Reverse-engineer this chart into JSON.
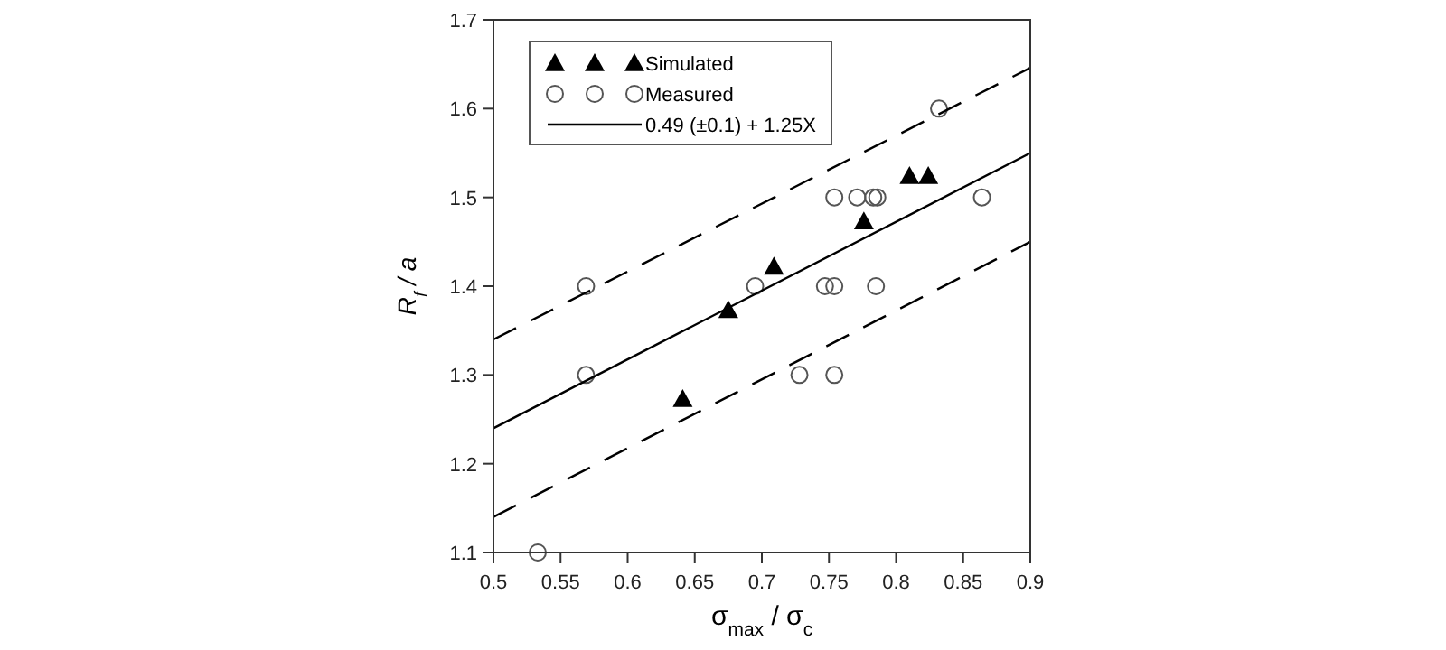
{
  "chart_data": {
    "type": "scatter",
    "xlabel": "σ$_{max}$ / σ$_{c}$",
    "ylabel": "R$_{f}$ / a",
    "xlim": [
      0.5,
      0.9
    ],
    "ylim": [
      1.1,
      1.7
    ],
    "xticks": [
      0.5,
      0.55,
      0.6,
      0.65,
      0.7,
      0.75,
      0.8,
      0.85,
      0.9
    ],
    "yticks": [
      1.1,
      1.2,
      1.3,
      1.4,
      1.5,
      1.6,
      1.7
    ],
    "grid": false,
    "legend": "top left",
    "series": [
      {
        "name": "Simulated",
        "marker": "triangle",
        "color": "#000000",
        "x": [
          0.641,
          0.675,
          0.709,
          0.776,
          0.81,
          0.824
        ],
        "values": [
          1.273,
          1.373,
          1.422,
          1.473,
          1.524,
          1.524
        ]
      },
      {
        "name": "Measured",
        "marker": "circle",
        "color": "#555555",
        "x": [
          0.533,
          0.569,
          0.569,
          0.695,
          0.728,
          0.754,
          0.747,
          0.754,
          0.785,
          0.754,
          0.771,
          0.783,
          0.786,
          0.832,
          0.864
        ],
        "values": [
          1.1,
          1.4,
          1.3,
          1.4,
          1.3,
          1.3,
          1.4,
          1.4,
          1.4,
          1.5,
          1.5,
          1.5,
          1.5,
          1.6,
          1.5
        ]
      },
      {
        "name": "0.49 (±0.1) + 1.25X",
        "type": "line",
        "marker": "none",
        "line_style": "solid",
        "color": "#000000",
        "x": [
          0.5,
          0.9
        ],
        "values": [
          1.24,
          1.55
        ]
      },
      {
        "type": "line",
        "marker": "none",
        "line_style": "dashed",
        "color": "#000000",
        "x": [
          0.5,
          0.9
        ],
        "values": [
          1.34,
          1.646
        ]
      },
      {
        "type": "line",
        "marker": "none",
        "line_style": "dashed",
        "color": "#000000",
        "x": [
          0.5,
          0.9
        ],
        "values": [
          1.14,
          1.45
        ]
      }
    ]
  }
}
